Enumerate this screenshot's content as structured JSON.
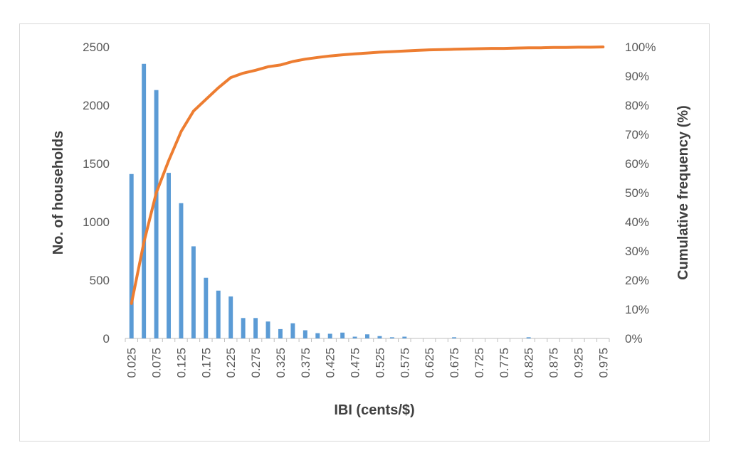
{
  "chart_data": {
    "type": "bar",
    "title": "",
    "xlabel": "IBI (cents/$)",
    "ylabel": "No. of households",
    "y2label": "Cumulative frequency (%)",
    "ylim": [
      0,
      2500
    ],
    "yticks": [
      0,
      500,
      1000,
      1500,
      2000,
      2500
    ],
    "y2lim": [
      0,
      100
    ],
    "y2ticks": [
      "0%",
      "10%",
      "20%",
      "30%",
      "40%",
      "50%",
      "60%",
      "70%",
      "80%",
      "90%",
      "100%"
    ],
    "grid": false,
    "legend": "none",
    "categories": [
      "0.025",
      "0.05",
      "0.075",
      "0.1",
      "0.125",
      "0.15",
      "0.175",
      "0.2",
      "0.225",
      "0.25",
      "0.275",
      "0.3",
      "0.325",
      "0.35",
      "0.375",
      "0.4",
      "0.425",
      "0.45",
      "0.475",
      "0.5",
      "0.525",
      "0.55",
      "0.575",
      "0.6",
      "0.625",
      "0.65",
      "0.675",
      "0.7",
      "0.725",
      "0.75",
      "0.775",
      "0.8",
      "0.825",
      "0.85",
      "0.875",
      "0.9",
      "0.925",
      "0.95",
      "0.975"
    ],
    "tick_labels": [
      "0.025",
      "",
      "0.075",
      "",
      "0.125",
      "",
      "0.175",
      "",
      "0.225",
      "",
      "0.275",
      "",
      "0.325",
      "",
      "0.375",
      "",
      "0.425",
      "",
      "0.475",
      "",
      "0.525",
      "",
      "0.575",
      "",
      "0.625",
      "",
      "0.675",
      "",
      "0.725",
      "",
      "0.775",
      "",
      "0.825",
      "",
      "0.875",
      "",
      "0.925",
      "",
      "0.975"
    ],
    "series": [
      {
        "type": "bar",
        "axis": "left",
        "color": "#5b9bd5",
        "values": [
          1410,
          2355,
          2130,
          1420,
          1160,
          790,
          520,
          410,
          360,
          175,
          175,
          145,
          80,
          130,
          70,
          45,
          40,
          50,
          15,
          35,
          20,
          10,
          15,
          0,
          0,
          0,
          10,
          0,
          0,
          0,
          0,
          0,
          10,
          0,
          0,
          0,
          0,
          0,
          0
        ]
      },
      {
        "type": "line",
        "axis": "right",
        "color": "#ed7d31",
        "values": [
          12,
          33,
          50,
          61,
          71,
          78,
          82,
          86,
          89.5,
          91,
          92,
          93.2,
          93.8,
          95,
          95.8,
          96.4,
          96.9,
          97.3,
          97.6,
          97.9,
          98.2,
          98.4,
          98.6,
          98.8,
          99,
          99.1,
          99.2,
          99.3,
          99.4,
          99.5,
          99.5,
          99.6,
          99.7,
          99.7,
          99.8,
          99.8,
          99.9,
          99.9,
          100
        ]
      }
    ]
  }
}
